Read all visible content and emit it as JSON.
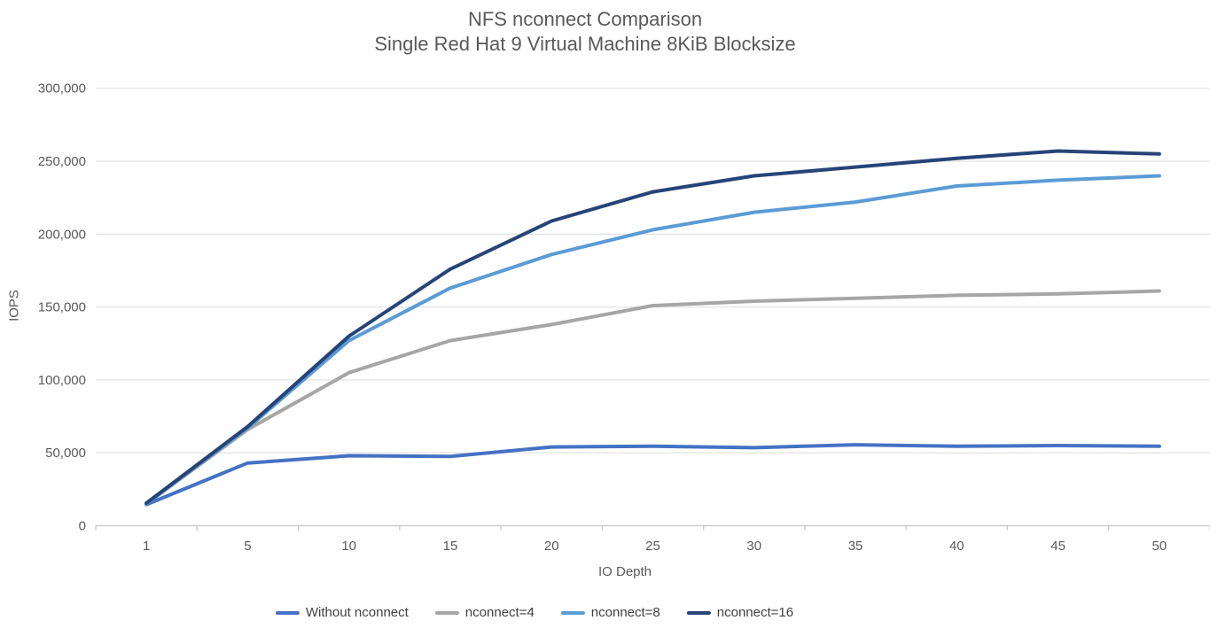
{
  "title": {
    "line1": "NFS nconnect Comparison",
    "line2": "Single Red Hat 9 Virtual Machine 8KiB Blocksize"
  },
  "chart_data": {
    "type": "line",
    "title": "NFS nconnect Comparison",
    "subtitle": "Single Red Hat 9 Virtual Machine 8KiB Blocksize",
    "xlabel": "IO Depth",
    "ylabel": "IOPS",
    "categories": [
      1,
      5,
      10,
      15,
      20,
      25,
      30,
      35,
      40,
      45,
      50
    ],
    "ylim": [
      0,
      300000
    ],
    "ytick_step": 50000,
    "ytick_labels": [
      "0",
      "50,000",
      "100,000",
      "150,000",
      "200,000",
      "250,000",
      "300,000"
    ],
    "grid": true,
    "legend_position": "bottom",
    "series": [
      {
        "name": "Without nconnect",
        "color": "#4472C4",
        "values": [
          14500,
          43000,
          48000,
          47500,
          54000,
          54500,
          53500,
          55500,
          54500,
          55000,
          54500
        ]
      },
      {
        "name": "nconnect=4",
        "color": "#A6A6A6",
        "values": [
          15000,
          66000,
          105000,
          127000,
          138000,
          151000,
          154000,
          156000,
          158000,
          159000,
          161000
        ]
      },
      {
        "name": "nconnect=8",
        "color": "#5B9BD5",
        "values": [
          15000,
          67000,
          127000,
          163000,
          186000,
          203000,
          215000,
          222000,
          233000,
          237000,
          240000
        ]
      },
      {
        "name": "nconnect=16",
        "color": "#264478",
        "values": [
          15500,
          68000,
          130000,
          176000,
          209000,
          229000,
          240000,
          246000,
          252000,
          257000,
          255000
        ]
      }
    ]
  },
  "colors": {
    "text": "#595959",
    "gridline": "#E4E4E4",
    "axis": "#C6C6C6"
  }
}
